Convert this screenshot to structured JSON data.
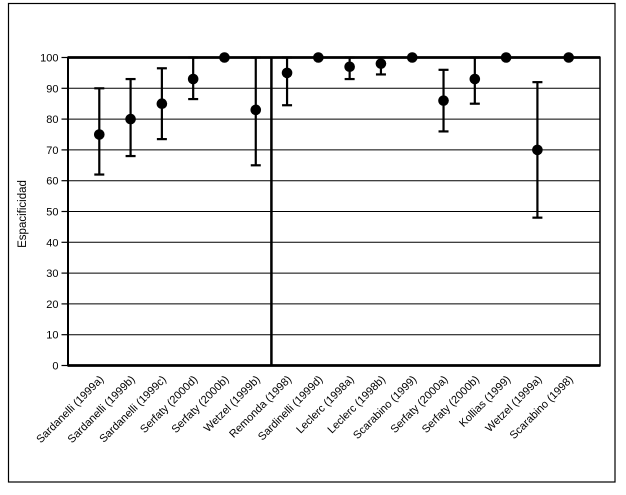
{
  "figure": {
    "background": "#ffffff",
    "border_color": "#000000",
    "marker_color": "#000000",
    "line_color": "#000000"
  },
  "chart_data": {
    "type": "scatter",
    "title": "",
    "xlabel": "",
    "ylabel": "Espacificidad",
    "ylim": [
      0,
      100
    ],
    "yticks": [
      0,
      10,
      20,
      30,
      40,
      50,
      60,
      70,
      80,
      90,
      100
    ],
    "grid": "horizontal",
    "legend_position": "none",
    "marker": "filled-circle",
    "error_bars": "vertical-ci-with-caps",
    "divider_after_index": 5,
    "categories": [
      "Sardanelli (1999a)",
      "Sardanelli (1999b)",
      "Sardanelli (1999c)",
      "Serfaty (2000d)",
      "Serfaty (2000b)",
      "Wetzel (1999b)",
      "Remonda (1998)",
      "Sardinelli (1999d)",
      "Leclerc (1998a)",
      "Leclerc (1998b)",
      "Scarabino (1999)",
      "Serfaty (2000a)",
      "Serfaty (2000b)",
      "Kollias (1999)",
      "Wetzel (1999a)",
      "Scarabino (1998)"
    ],
    "series": [
      {
        "name": "Especificidad",
        "values": [
          75,
          80,
          85,
          93,
          100,
          83,
          95,
          100,
          97,
          98,
          100,
          86,
          93,
          100,
          70,
          100
        ],
        "ci_low": [
          62,
          68,
          73.5,
          86.5,
          null,
          65,
          84.5,
          null,
          93,
          94.5,
          null,
          76,
          85,
          null,
          48,
          null
        ],
        "ci_high": [
          90,
          93,
          96.5,
          100,
          null,
          100,
          100,
          null,
          100,
          100,
          null,
          96,
          100,
          null,
          92,
          null
        ]
      }
    ]
  }
}
